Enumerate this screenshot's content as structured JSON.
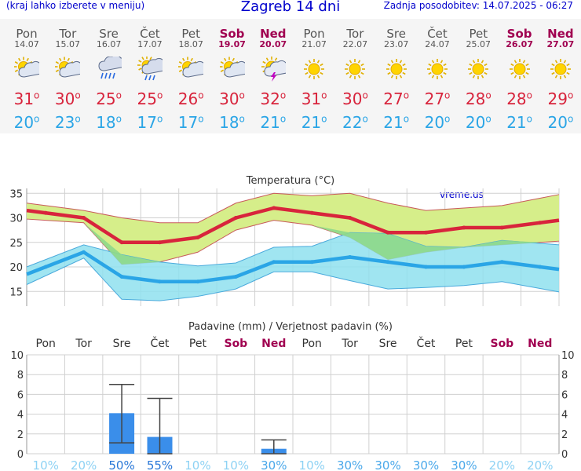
{
  "header": {
    "left_note": "(kraj lahko izberete v meniju)",
    "title": "Zagreb 14 dni",
    "updated": "Zadnja posodobitev: 14.07.2025 - 06:27"
  },
  "days": [
    {
      "name": "Pon",
      "date": "14.07",
      "weekend": false,
      "icon": "sun-cloud-icon",
      "tmax": "31",
      "tmin": "20"
    },
    {
      "name": "Tor",
      "date": "15.07",
      "weekend": false,
      "icon": "sun-cloud-icon",
      "tmax": "30",
      "tmin": "23"
    },
    {
      "name": "Sre",
      "date": "16.07",
      "weekend": false,
      "icon": "cloud-rain-icon",
      "tmax": "25",
      "tmin": "18"
    },
    {
      "name": "Čet",
      "date": "17.07",
      "weekend": false,
      "icon": "sun-cloud-rain-icon",
      "tmax": "25",
      "tmin": "17"
    },
    {
      "name": "Pet",
      "date": "18.07",
      "weekend": false,
      "icon": "sun-cloud-icon",
      "tmax": "26",
      "tmin": "17"
    },
    {
      "name": "Sob",
      "date": "19.07",
      "weekend": true,
      "icon": "sun-cloud-icon",
      "tmax": "30",
      "tmin": "18"
    },
    {
      "name": "Ned",
      "date": "20.07",
      "weekend": true,
      "icon": "cloud-lightning-icon",
      "tmax": "32",
      "tmin": "21"
    },
    {
      "name": "Pon",
      "date": "21.07",
      "weekend": false,
      "icon": "sun-icon",
      "tmax": "31",
      "tmin": "21"
    },
    {
      "name": "Tor",
      "date": "22.07",
      "weekend": false,
      "icon": "sun-icon",
      "tmax": "30",
      "tmin": "22"
    },
    {
      "name": "Sre",
      "date": "23.07",
      "weekend": false,
      "icon": "sun-icon",
      "tmax": "27",
      "tmin": "21"
    },
    {
      "name": "Čet",
      "date": "24.07",
      "weekend": false,
      "icon": "sun-icon",
      "tmax": "27",
      "tmin": "20"
    },
    {
      "name": "Pet",
      "date": "25.07",
      "weekend": false,
      "icon": "sun-icon",
      "tmax": "28",
      "tmin": "20"
    },
    {
      "name": "Sob",
      "date": "26.07",
      "weekend": true,
      "icon": "sun-icon",
      "tmax": "28",
      "tmin": "21"
    },
    {
      "name": "Ned",
      "date": "27.07",
      "weekend": true,
      "icon": "sun-icon",
      "tmax": "29",
      "tmin": "20"
    }
  ],
  "colors": {
    "accent_blue": "#0000cc",
    "max_red": "#d8243c",
    "min_blue": "#2aa5e6",
    "weekend": "#a00050",
    "max_band": "#d6ee8a",
    "min_band": "#8fe0ee",
    "overlap": "#8ed88a",
    "bar": "#3a8eea"
  },
  "chart_data": [
    {
      "type": "line",
      "title": "Temperatura (°C)",
      "watermark": "vreme.us",
      "categories": [
        "14.07",
        "15.07",
        "16.07",
        "17.07",
        "18.07",
        "19.07",
        "20.07",
        "21.07",
        "22.07",
        "23.07",
        "24.07",
        "25.07",
        "26.07",
        "27.07"
      ],
      "ylim": [
        12,
        36
      ],
      "yticks": [
        15,
        20,
        25,
        30,
        35
      ],
      "grid": true,
      "series": [
        {
          "values": [
            31,
            30,
            25,
            25,
            26,
            30,
            32,
            31,
            30,
            27,
            27,
            28,
            28,
            29
          ],
          "band_high": [
            32.5,
            31.5,
            30,
            29,
            29,
            33,
            35,
            34.5,
            35,
            33,
            31.5,
            32,
            32.5,
            34
          ],
          "band_low": [
            29.5,
            29,
            20.5,
            21,
            23,
            27.5,
            29.5,
            28.5,
            26,
            21.5,
            23,
            24,
            24.5,
            25
          ]
        },
        {
          "values": [
            20,
            23,
            18,
            17,
            17,
            18,
            21,
            21,
            22,
            21,
            20,
            20,
            21,
            20
          ],
          "band_high": [
            21.5,
            24.5,
            22.5,
            21,
            20.2,
            20.8,
            24,
            24.2,
            27,
            26.8,
            24.2,
            24,
            25.4,
            24.8
          ],
          "band_low": [
            18.2,
            21.8,
            13.4,
            13.1,
            14,
            15.5,
            19,
            19,
            17.2,
            15.5,
            15.8,
            16.2,
            17,
            15.6
          ]
        }
      ]
    },
    {
      "type": "bar",
      "title": "Padavine (mm) / Verjetnost padavin (%)",
      "day_labels": [
        "Pon",
        "Tor",
        "Sre",
        "Čet",
        "Pet",
        "Sob",
        "Ned",
        "Pon",
        "Tor",
        "Sre",
        "Čet",
        "Pet",
        "Sob",
        "Ned"
      ],
      "weekend_flags": [
        false,
        false,
        false,
        false,
        false,
        true,
        true,
        false,
        false,
        false,
        false,
        false,
        true,
        true
      ],
      "values": [
        0,
        0,
        4.1,
        1.7,
        0,
        0,
        0.5,
        0,
        0,
        0,
        0,
        0,
        0,
        0
      ],
      "error_high": [
        0,
        0,
        7,
        5.6,
        0,
        0,
        1.4,
        0,
        0,
        0,
        0,
        0,
        0,
        0
      ],
      "error_low": [
        0,
        0,
        1.1,
        0,
        0,
        0,
        0,
        0,
        0,
        0,
        0,
        0,
        0,
        0
      ],
      "probability": [
        "10%",
        "20%",
        "50%",
        "55%",
        "10%",
        "10%",
        "30%",
        "10%",
        "30%",
        "30%",
        "30%",
        "30%",
        "20%",
        "20%"
      ],
      "ylim": [
        0,
        10
      ],
      "yticks": [
        0,
        2,
        4,
        6,
        8,
        10
      ],
      "grid": true
    }
  ]
}
